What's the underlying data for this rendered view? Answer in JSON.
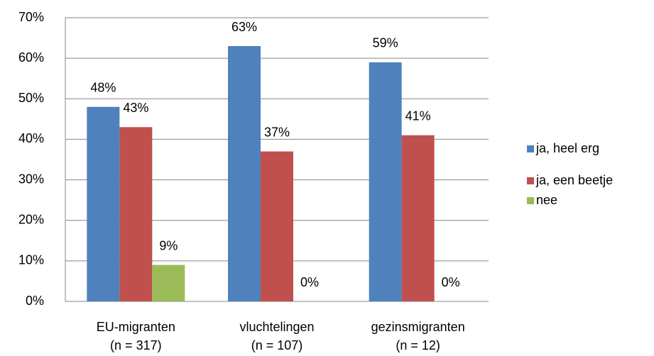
{
  "chart_data": {
    "type": "bar",
    "categories": [
      [
        "EU-migranten",
        "(n = 317)"
      ],
      [
        "vluchtelingen",
        "(n = 107)"
      ],
      [
        "gezinsmigranten",
        "(n = 12)"
      ]
    ],
    "series": [
      {
        "name": "ja, heel erg",
        "color": "#4f81bd",
        "values": [
          48,
          63,
          59
        ],
        "value_labels": [
          "48%",
          "63%",
          "59%"
        ]
      },
      {
        "name": "ja, een beetje",
        "color": "#c0504d",
        "values": [
          43,
          37,
          41
        ],
        "value_labels": [
          "43%",
          "37%",
          "41%"
        ]
      },
      {
        "name": "nee",
        "color": "#9bbb59",
        "values": [
          9,
          0,
          0
        ],
        "value_labels": [
          "9%",
          "0%",
          "0%"
        ]
      }
    ],
    "ylim": [
      0,
      70
    ],
    "yticks": [
      {
        "value": 0,
        "label": "0%"
      },
      {
        "value": 10,
        "label": "10%"
      },
      {
        "value": 20,
        "label": "20%"
      },
      {
        "value": 30,
        "label": "30%"
      },
      {
        "value": 40,
        "label": "40%"
      },
      {
        "value": 50,
        "label": "50%"
      },
      {
        "value": 60,
        "label": "60%"
      },
      {
        "value": 70,
        "label": "70%"
      }
    ],
    "grid": true,
    "legend": "right"
  }
}
